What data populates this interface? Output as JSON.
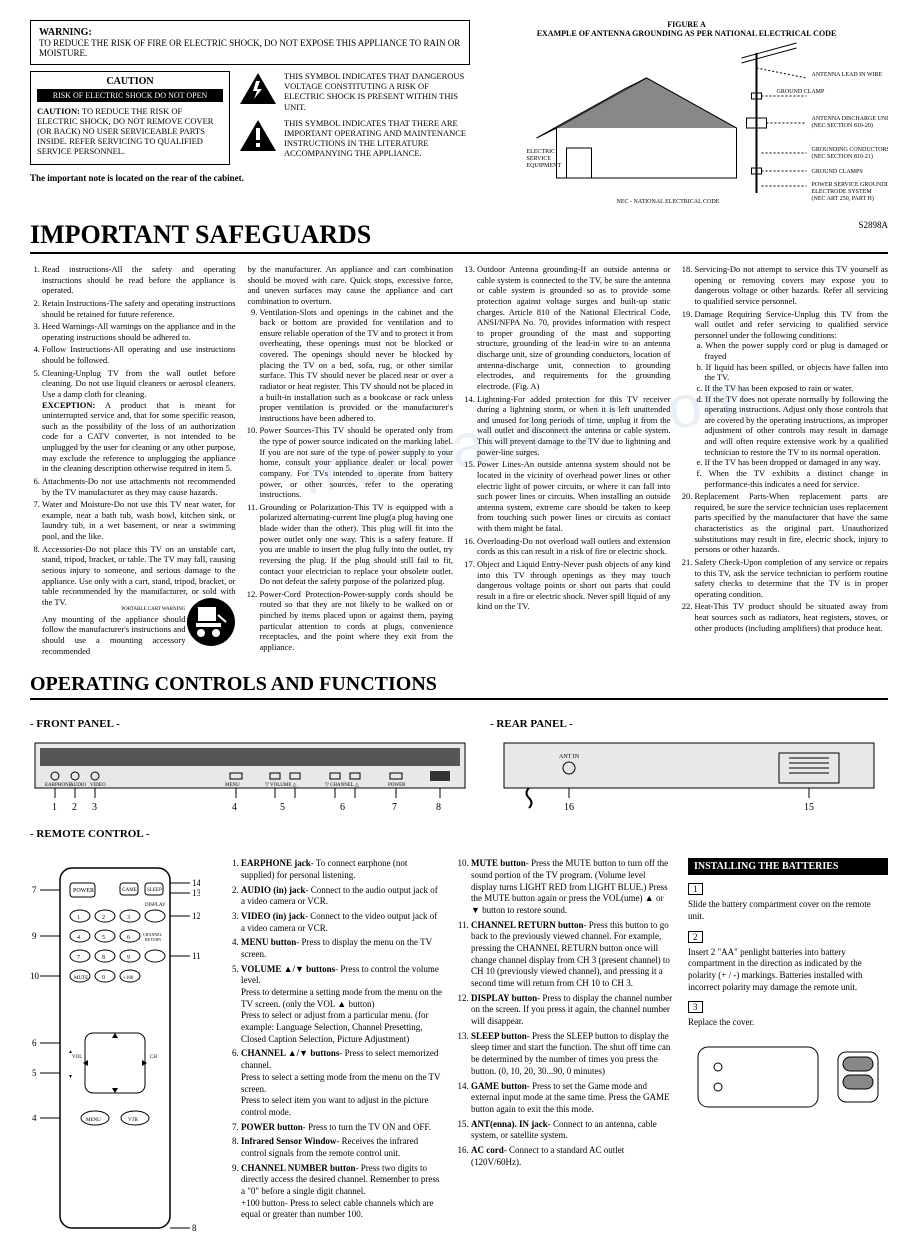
{
  "warning": {
    "title": "WARNING:",
    "text": "TO REDUCE THE RISK OF FIRE OR ELECTRIC SHOCK, DO NOT EXPOSE THIS APPLIANCE TO RAIN OR MOISTURE."
  },
  "caution": {
    "header": "CAUTION",
    "blackbar": "RISK OF ELECTRIC SHOCK DO NOT OPEN",
    "body_label": "CAUTION:",
    "body": " TO REDUCE THE RISK OF ELECTRIC SHOCK, DO NOT REMOVE COVER (OR BACK) NO USER SERVICEABLE PARTS INSIDE. REFER SERVICING TO QUALIFIED SERVICE PERSONNEL."
  },
  "symbol1": "THIS SYMBOL INDICATES THAT DANGEROUS VOLTAGE CONSTITUTING A RISK OF ELECTRIC SHOCK IS PRESENT WITHIN THIS UNIT.",
  "symbol2": "THIS SYMBOL INDICATES THAT THERE ARE IMPORTANT OPERATING AND MAINTENANCE INSTRUCTIONS IN THE LITERATURE ACCOMPANYING THE APPLIANCE.",
  "note": "The important note is located on the rear of the cabinet.",
  "figure": {
    "label": "FIGURE A",
    "title": "EXAMPLE OF ANTENNA GROUNDING AS PER NATIONAL ELECTRICAL CODE",
    "antenna_lead": "ANTENNA LEAD IN WIRE",
    "ground_clamp": "GROUND CLAMP",
    "discharge": "ANTENNA DISCHARGE UNIT (NEC SECTION 810-20)",
    "conductors": "GROUNDING CONDUCTORS (NEC SECTION 810-21)",
    "ground_clamps": "GROUND CLAMPS",
    "electrode": "POWER SERVICE GROUNDING ELECTRODE SYSTEM (NEC ART 250, PART H)",
    "service": "ELECTRIC SERVICE EQUIPMENT",
    "nec": "NEC - NATIONAL ELECTRICAL CODE",
    "model": "S2898A"
  },
  "h1": "IMPORTANT SAFEGUARDS",
  "safeguards": {
    "col1": [
      "Read instructions-All the safety and operating instructions should be read before the appliance is operated.",
      "Retain Instructions-The safety and operating instructions should be retained for future reference.",
      "Heed Warnings-All warnings on the appliance and in the operating instructions should be adhered to.",
      "Follow Instructions-All operating and use instructions should be followed.",
      "Cleaning-Unplug TV from the wall outlet before cleaning. Do not use liquid cleaners or aerosol cleaners. Use a damp cloth for cleaning.",
      "Attachments-Do not use attachments not recommended by the TV manufacturer as they may cause hazards.",
      "Water and Moisture-Do not use this TV near water, for example, near a bath tub, wash bowl, kitchen sink, or laundry tub, in a wet basement, or near a swimming pool, and the like.",
      "Accessories-Do not place this TV on an unstable cart, stand, tripod, bracket, or table. The TV may fall, causing serious injury to someone, and serious damage to the appliance. Use only with a cart, stand, tripod, bracket, or table recommended by the manufacturer, or sold with the TV."
    ],
    "exception_label": "EXCEPTION:",
    "exception": " A product that is meant for uninterrupted service and, that for some specific reason, such as the possibility of the loss of an authorization code for a CATV converter, is not intended to be unplugged by the user for cleaning or any other purpose, may exclude the reference to unplugging the appliance in the cleaning description otherwise required in item 5.",
    "mounting": "Any mounting of the appliance should follow the manufacturer's instructions and should use a mounting accessory recommended",
    "cart_label": "PORTABLE CART WARNING",
    "col2_intro": "by the manufacturer. An appliance and cart combination should be moved with care. Quick stops, excessive force, and uneven surfaces may cause the appliance and cart combination to overturn.",
    "col2": [
      "Ventilation-Slots and openings in the cabinet and the back or bottom are provided for ventilation and to ensure reliable operation of the TV and to protect it from overheating, these openings must not be blocked or covered. The openings should never be blocked by placing the TV on a bed, sofa, rug, or other similar surface. This TV should never be placed near or over a radiator or heat register. This TV should not be placed in a built-in installation such as a bookcase or rack unless proper ventilation is provided or the manufacturer's instructions have been adhered to.",
      "Power Sources-This TV should be operated only from the type of power source indicated on the marking label. If you are not sure of the type of power supply to your home, consult your appliance dealer or local power company. For TVs intended to operate from battery power, or other sources, refer to the operating instructions.",
      "Grounding or Polarization-This TV is equipped with a polarized alternating-current line plug(a plug having one blade wider than the other). This plug will fit into the power outlet only one way. This is a safety feature. If you are unable to insert the plug fully into the outlet, try reversing the plug. If the plug should still fail to fit, contact your electrician to replace your obsolete outlet. Do not defeat the safety purpose of the polarized plug.",
      "Power-Cord Protection-Power-supply cords should be routed so that they are not likely to be walked on or pinched by items placed upon or against them, paying particular attention to cords at plugs, convenience receptacles, and the point where they exit from the appliance."
    ],
    "col3": [
      "Outdoor Antenna grounding-If an outside antenna or cable system is connected to the TV, be sure the antenna or cable system is grounded so as to provide some protection against voltage surges and built-up static charges. Article 810 of the National Electrical Code, ANSI/NFPA No. 70, provides information with respect to proper grounding of the mast and supporting structure, grounding of the lead-in wire to an antenna discharge unit, size of grounding conductors, location of antenna-discharge unit, connection to grounding electrodes, and requirements for the grounding electrode. (Fig. A)",
      "Lightning-For added protection for this TV receiver during a lightning storm, or when it is left unattended and unused for long periods of time, unplug it from the wall outlet and disconnect the antenna or cable system. This will prevent damage to the TV due to lightning and power-line surges.",
      "Power Lines-An outside antenna system should not be located in the vicinity of overhead power lines or other electric light of power circuits, or where it can fall into such power lines or circuits. When installing an outside antenna system, extreme care should be taken to keep from touching such power lines or circuits as contact with them might be fatal.",
      "Overloading-Do not overload wall outlets and extension cords as this can result in a risk of fire or electric shock.",
      "Object and Liquid Entry-Never push objects of any kind into this TV through openings as they may touch dangerous voltage points or short out parts that could result in a fire or electric shock. Never spill liquid of any kind on the TV."
    ],
    "col4": [
      "Servicing-Do not attempt to service this TV yourself as opening or removing covers may expose you to dangerous voltage or other hazards. Refer all servicing to qualified service personnel.",
      "Damage Requiring Service-Unplug this TV from the wall outlet and refer servicing to qualified service personnel under the following conditions:"
    ],
    "col4_sub": [
      "a. When the power supply cord or plug is damaged or frayed",
      "b. If liquid has been spilled, or objects have fallen into the TV.",
      "c. If the TV has been exposed to rain or water.",
      "d. If the TV does not operate normally by following the operating instructions. Adjust only those controls that are covered by the operating instructions, as improper adjustment of other controls may result in damage and will often require extensive work by a qualified technician to restore the TV to its normal operation.",
      "e. If the TV has been dropped or damaged in any way.",
      "f. When the TV exhibits a distinct change in performance-this indicates a need for service."
    ],
    "col4_rest": [
      "Replacement Parts-When replacement parts are required, be sure the service technician uses replacement parts specified by the manufacturer that have the same characteristics as the original part. Unauthorized substitutions may result in fire, electric shock, injury to persons or other hazards.",
      "Safety Check-Upon completion of any service or repairs to this TV, ask the service technician to perform routine safety checks to determine that the TV is in proper operating condition.",
      "Heat-This TV product should be situated away from heat sources such as radiators, heat registers, stoves, or other products (including amplifiers) that produce heat."
    ]
  },
  "h2": "OPERATING CONTROLS AND FUNCTIONS",
  "front_label": "- FRONT PANEL -",
  "rear_label": "- REAR PANEL -",
  "remote_label": "- REMOTE CONTROL -",
  "front_jacks": [
    "EARPHONE",
    "AUDIO",
    "VIDEO"
  ],
  "front_controls": [
    "MENU",
    "▽ VOLUME △",
    "▽ CHANNEL △",
    "POWER"
  ],
  "front_nums": [
    "1",
    "2",
    "3",
    "4",
    "5",
    "6",
    "7",
    "8"
  ],
  "rear_labels": [
    "16",
    "15",
    "ANT IN"
  ],
  "remote_nums": [
    "5",
    "6",
    "7",
    "8",
    "9",
    "10",
    "11",
    "12",
    "13",
    "14"
  ],
  "remote_btns": {
    "power": "POWER",
    "game": "GAME",
    "sleep": "SLEEP",
    "display": "DISPLAY",
    "ch_return": "CHANNEL RETURN",
    "mute": "MUTE",
    "plus100": "+100",
    "vol": "VOL",
    "ch": "CH",
    "menu": "MENU",
    "vtr": "VTR"
  },
  "controls1": [
    {
      "b": "EARPHONE jack",
      "t": "- To connect earphone (not supplied) for personal listening."
    },
    {
      "b": "AUDIO (in) jack",
      "t": "- Connect to the audio output jack of a video camera or VCR."
    },
    {
      "b": "VIDEO (in) jack",
      "t": "- Connect to the video output jack of a video camera or VCR."
    },
    {
      "b": "MENU button",
      "t": "- Press to display the menu on the TV screen."
    },
    {
      "b": "VOLUME ▲/▼ buttons",
      "t": "- Press to control the volume level.\nPress to determine a setting mode from the menu on the TV screen. (only the VOL ▲ button)\nPress to select or adjust from a particular menu. (for example: Language Selection, Channel Presetting, Closed Caption Selection, Picture Adjustment)"
    },
    {
      "b": "CHANNEL ▲/▼ buttons",
      "t": "- Press to select memorized channel.\nPress to select a setting mode from the menu on the TV screen.\nPress to select item you want to adjust in the picture control mode."
    },
    {
      "b": "POWER button",
      "t": "- Press to turn the TV ON and OFF."
    },
    {
      "b": "Infrared Sensor Window",
      "t": "- Receives the infrared control signals from the remote control unit."
    },
    {
      "b": "CHANNEL NUMBER button",
      "t": "- Press two digits to directly access the desired channel. Remember to press a \"0\" before a single digit channel.\n+100 button- Press to select cable channels which are equal or greater than number 100."
    }
  ],
  "controls2": [
    {
      "b": "MUTE button",
      "t": "- Press the MUTE button to turn off the sound portion of the TV program. (Volume level display turns LIGHT RED from LIGHT BLUE.) Press the MUTE button again or press the VOL(ume) ▲ or ▼ button to restore sound."
    },
    {
      "b": "CHANNEL RETURN button",
      "t": "- Press this button to go back to the previously viewed channel. For example, pressing the CHANNEL RETURN button once will change channel display from CH 3 (present channel) to CH 10 (previously viewed channel), and pressing it a second time will return from CH 10 to CH 3."
    },
    {
      "b": "DISPLAY button",
      "t": "- Press to display the channel number on the screen. If you press it again, the channel number will disappear."
    },
    {
      "b": "SLEEP button",
      "t": "- Press the SLEEP button to display the sleep timer and start the function. The shut off time can be determined by the number of times you press the button. (0, 10, 20, 30...90, 0 minutes)"
    },
    {
      "b": "GAME button",
      "t": "- Press to set the Game mode and external input mode at the same time. Press the GAME button again to exit the this mode."
    },
    {
      "b": "ANT(enna). IN jack",
      "t": "- Connect to an antenna, cable system, or satellite system."
    },
    {
      "b": "AC cord",
      "t": "- Connect to a standard AC outlet (120V/60Hz)."
    }
  ],
  "battery": {
    "header": "INSTALLING THE BATTERIES",
    "step1": "1",
    "text1": "Slide the battery compartment cover on the remote unit.",
    "step2": "2",
    "text2": "Insert 2 \"AA\" penlight batteries into battery compartment in the direction as indicated by the polarity (+ / -) markings. Batteries installed with incorrect polarity may damage the remote unit.",
    "step3": "3",
    "text3": "Replace the cover."
  }
}
